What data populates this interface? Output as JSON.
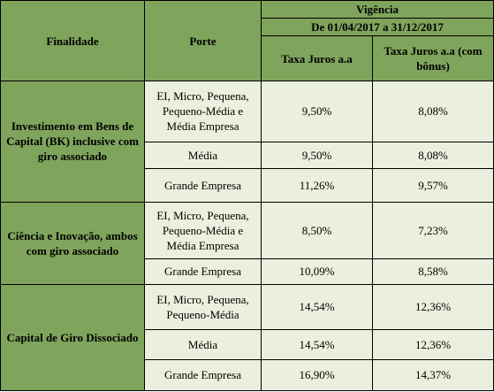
{
  "header": {
    "finalidade": "Finalidade",
    "porte": "Porte",
    "vigencia": "Vigência",
    "periodo": "De 01/04/2017 a 31/12/2017",
    "taxa": "Taxa Juros a.a",
    "taxa_bonus": "Taxa Juros a.a (com bônus)"
  },
  "groups": [
    {
      "finalidade": "Investimento em Bens de Capital (BK) inclusive com giro associado",
      "rows": [
        {
          "porte": "EI, Micro, Pequena, Pequeno-Média e Média Empresa",
          "taxa": "9,50%",
          "taxa_bonus": "8,08%"
        },
        {
          "porte": "Média",
          "taxa": "9,50%",
          "taxa_bonus": "8,08%"
        },
        {
          "porte": "Grande Empresa",
          "taxa": "11,26%",
          "taxa_bonus": "9,57%"
        }
      ]
    },
    {
      "finalidade": "Ciência e Inovação, ambos com giro associado",
      "rows": [
        {
          "porte": "EI, Micro, Pequena, Pequeno-Média e Média Empresa",
          "taxa": "8,50%",
          "taxa_bonus": "7,23%"
        },
        {
          "porte": "Grande Empresa",
          "taxa": "10,09%",
          "taxa_bonus": "8,58%"
        }
      ]
    },
    {
      "finalidade": "Capital de Giro Dissociado",
      "rows": [
        {
          "porte": "EI, Micro, Pequena, Pequeno-Média",
          "taxa": "14,54%",
          "taxa_bonus": "12,36%"
        },
        {
          "porte": "Média",
          "taxa": "14,54%",
          "taxa_bonus": "12,36%"
        },
        {
          "porte": "Grande Empresa",
          "taxa": "16,90%",
          "taxa_bonus": "14,37%"
        }
      ]
    }
  ]
}
